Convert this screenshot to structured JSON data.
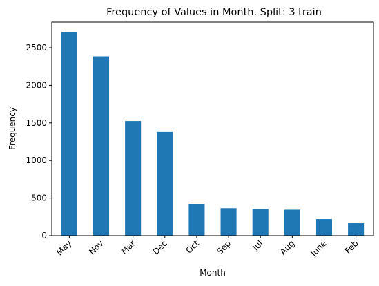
{
  "chart_data": {
    "type": "bar",
    "title": "Frequency of Values in Month. Split: 3 train",
    "xlabel": "Month",
    "ylabel": "Frequency",
    "categories": [
      "May",
      "Nov",
      "Mar",
      "Dec",
      "Oct",
      "Sep",
      "Jul",
      "Aug",
      "June",
      "Feb"
    ],
    "values": [
      2705,
      2385,
      1525,
      1380,
      420,
      365,
      355,
      345,
      220,
      165
    ],
    "ylim": [
      0,
      2840
    ],
    "yticks": [
      0,
      500,
      1000,
      1500,
      2000,
      2500
    ],
    "grid": false,
    "bar_color": "#1f77b4"
  }
}
